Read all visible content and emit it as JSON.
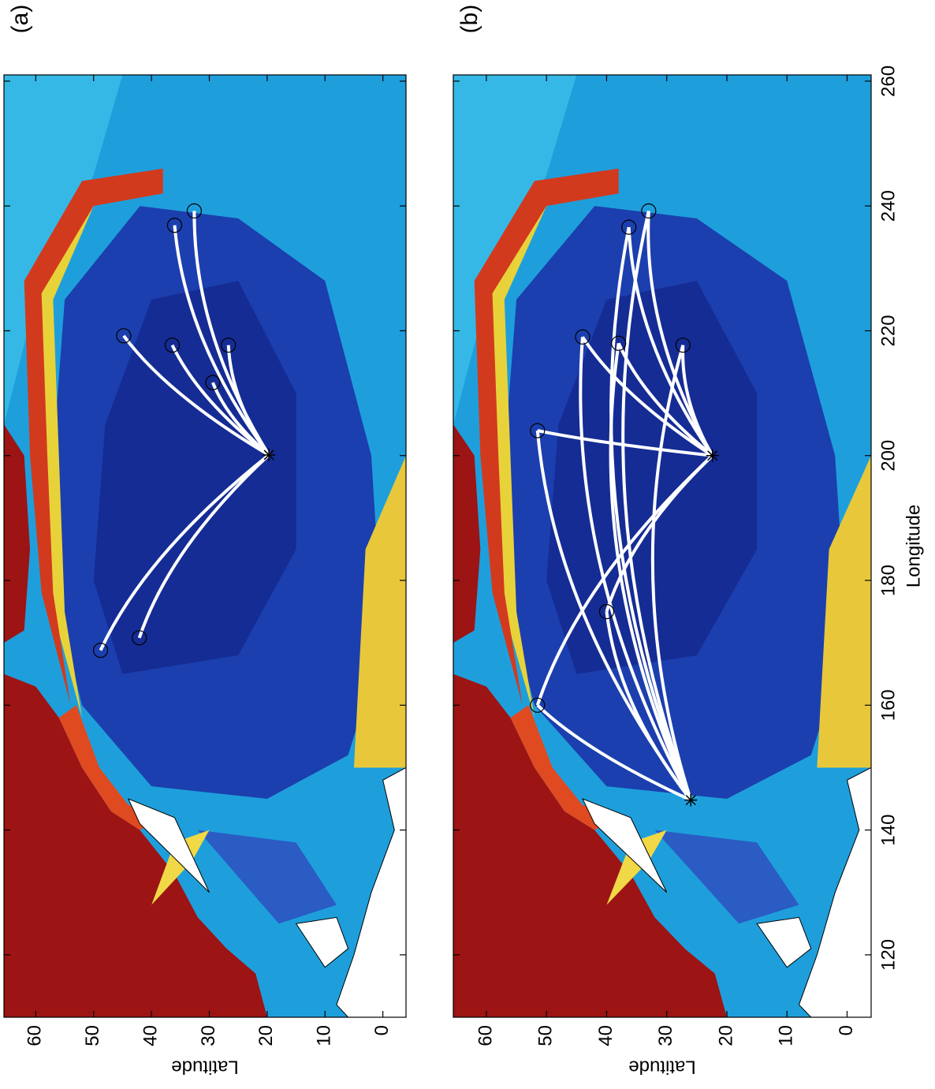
{
  "panels": [
    {
      "label": "(a)",
      "ylabel": "Latitude",
      "xlim": [
        110,
        261
      ],
      "ylim": [
        -4,
        65.5
      ],
      "xticks": [
        120,
        140,
        160,
        180,
        200,
        220,
        240,
        260
      ],
      "yticks": [
        0,
        10,
        20,
        30,
        40,
        50,
        60
      ],
      "sources": [
        {
          "lon": 200.1,
          "lat": 19.7
        }
      ],
      "receivers": [
        {
          "lon": 219.2,
          "lat": 44.8
        },
        {
          "lon": 217.7,
          "lat": 36.4
        },
        {
          "lon": 211.7,
          "lat": 29.4
        },
        {
          "lon": 217.7,
          "lat": 26.7
        },
        {
          "lon": 236.9,
          "lat": 36
        },
        {
          "lon": 239.2,
          "lat": 32.6
        },
        {
          "lon": 168.8,
          "lat": 48.8
        },
        {
          "lon": 170.8,
          "lat": 42.1
        }
      ],
      "links": [
        [
          0,
          0
        ],
        [
          0,
          1
        ],
        [
          0,
          2
        ],
        [
          0,
          3
        ],
        [
          0,
          4
        ],
        [
          0,
          5
        ],
        [
          0,
          6
        ],
        [
          0,
          7
        ]
      ]
    },
    {
      "label": "(b)",
      "ylabel": "Latitude",
      "xlabel": "Longitude",
      "xlim": [
        110,
        261
      ],
      "ylim": [
        -4,
        65.5
      ],
      "xticks": [
        120,
        140,
        160,
        180,
        200,
        220,
        240,
        260
      ],
      "yticks": [
        0,
        10,
        20,
        30,
        40,
        50,
        60
      ],
      "sources": [
        {
          "lon": 144.8,
          "lat": 26
        },
        {
          "lon": 200,
          "lat": 22.4
        }
      ],
      "receivers": [
        {
          "lon": 160,
          "lat": 51.5
        },
        {
          "lon": 204,
          "lat": 51.5
        },
        {
          "lon": 236.6,
          "lat": 36.3
        },
        {
          "lon": 239.2,
          "lat": 33
        },
        {
          "lon": 217.7,
          "lat": 27.3
        },
        {
          "lon": 219,
          "lat": 44
        },
        {
          "lon": 218,
          "lat": 38
        },
        {
          "lon": 175,
          "lat": 40
        }
      ],
      "links": [
        [
          0,
          0
        ],
        [
          0,
          1
        ],
        [
          0,
          2
        ],
        [
          0,
          3
        ],
        [
          0,
          4
        ],
        [
          0,
          5
        ],
        [
          0,
          6
        ],
        [
          0,
          7
        ],
        [
          1,
          0
        ],
        [
          1,
          1
        ],
        [
          1,
          2
        ],
        [
          1,
          3
        ],
        [
          1,
          4
        ],
        [
          1,
          5
        ],
        [
          1,
          6
        ],
        [
          1,
          7
        ]
      ]
    }
  ]
}
